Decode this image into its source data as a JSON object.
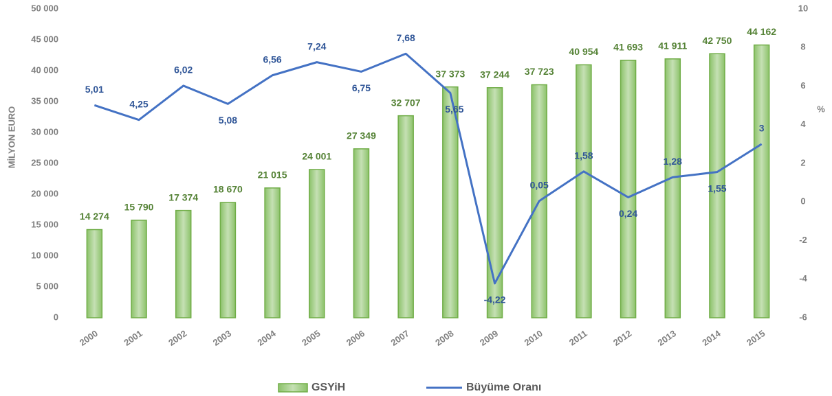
{
  "chart_data": {
    "type": "bar_line",
    "y_label": "MİLYON EURO",
    "y2_label": "%",
    "categories": [
      "2000",
      "2001",
      "2002",
      "2003",
      "2004",
      "2005",
      "2006",
      "2007",
      "2008",
      "2009",
      "2010",
      "2011",
      "2012",
      "2013",
      "2014",
      "2015"
    ],
    "series": [
      {
        "name": "GSYiH",
        "type": "bar",
        "color": "#a9d18e",
        "border": "#70ad47",
        "values": [
          14274,
          15790,
          17374,
          18670,
          21015,
          24001,
          27349,
          32707,
          37373,
          37244,
          37723,
          40954,
          41693,
          41911,
          42750,
          44162
        ],
        "value_labels": [
          "14 274",
          "15 790",
          "17 374",
          "18 670",
          "21 015",
          "24 001",
          "27 349",
          "32 707",
          "37 373",
          "37 244",
          "37 723",
          "40 954",
          "41 693",
          "41 911",
          "42 750",
          "44 162"
        ]
      },
      {
        "name": "Büyüme Oranı",
        "type": "line",
        "axis": "y2",
        "color": "#4472c4",
        "values": [
          5.01,
          4.25,
          6.02,
          5.08,
          6.56,
          7.24,
          6.75,
          7.68,
          5.65,
          -4.22,
          0.05,
          1.58,
          0.24,
          1.28,
          1.55,
          3
        ],
        "value_labels": [
          "5,01",
          "4,25",
          "6,02",
          "5,08",
          "6,56",
          "7,24",
          "6,75",
          "7,68",
          "5,65",
          "-4,22",
          "0,05",
          "1,58",
          "0,24",
          "1,28",
          "1,55",
          "3"
        ]
      }
    ],
    "ylim": [
      0,
      50000
    ],
    "yticks": [
      0,
      {
        "value": 5000,
        "label": "5 000"
      },
      {
        "value": 10000,
        "label": "10 000"
      },
      {
        "value": 15000,
        "label": "15 000"
      },
      {
        "value": 20000,
        "label": "20 000"
      },
      {
        "value": 25000,
        "label": "25 000"
      },
      {
        "value": 30000,
        "label": "30 000"
      },
      {
        "value": 35000,
        "label": "35 000"
      },
      {
        "value": 40000,
        "label": "40 000"
      },
      {
        "value": 45000,
        "label": "45 000"
      },
      {
        "value": 50000,
        "label": "50 000"
      }
    ],
    "y2lim": [
      -6,
      10
    ],
    "y2ticks": [
      -6,
      -4,
      -2,
      0,
      2,
      4,
      6,
      8,
      10
    ],
    "legend": "bottom"
  }
}
